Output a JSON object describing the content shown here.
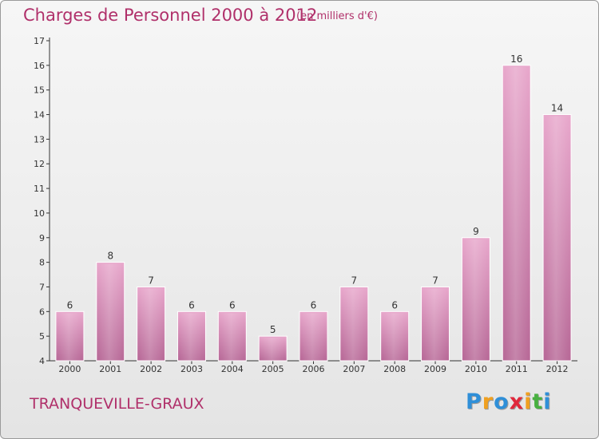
{
  "header": {
    "title": "Charges de Personnel 2000 à 2012",
    "subtitle": "(en milliers d'€)"
  },
  "commune": "TRANQUEVILLE-GRAUX",
  "brand": {
    "letters": [
      "P",
      "r",
      "o",
      "x",
      "i",
      "t",
      "i"
    ],
    "colors": [
      "#2f8fd8",
      "#f0a020",
      "#2f8fd8",
      "#e0283c",
      "#f0a020",
      "#48b040",
      "#2f8fd8"
    ]
  },
  "colors": {
    "bar_top": "#e8a8cc",
    "bar_bottom": "#b86a98",
    "text_accent": "#b0306a"
  },
  "chart_data": {
    "type": "bar",
    "title": "Charges de Personnel 2000 à 2012",
    "subtitle": "(en milliers d'€)",
    "categories": [
      "2000",
      "2001",
      "2002",
      "2003",
      "2004",
      "2005",
      "2006",
      "2007",
      "2008",
      "2009",
      "2010",
      "2011",
      "2012"
    ],
    "values": [
      6,
      8,
      7,
      6,
      6,
      5,
      6,
      7,
      6,
      7,
      9,
      16,
      14
    ],
    "ylim": [
      4,
      17
    ],
    "yticks": [
      4,
      5,
      6,
      7,
      8,
      9,
      10,
      11,
      12,
      13,
      14,
      15,
      16,
      17
    ],
    "grid": false,
    "data_labels": true
  }
}
